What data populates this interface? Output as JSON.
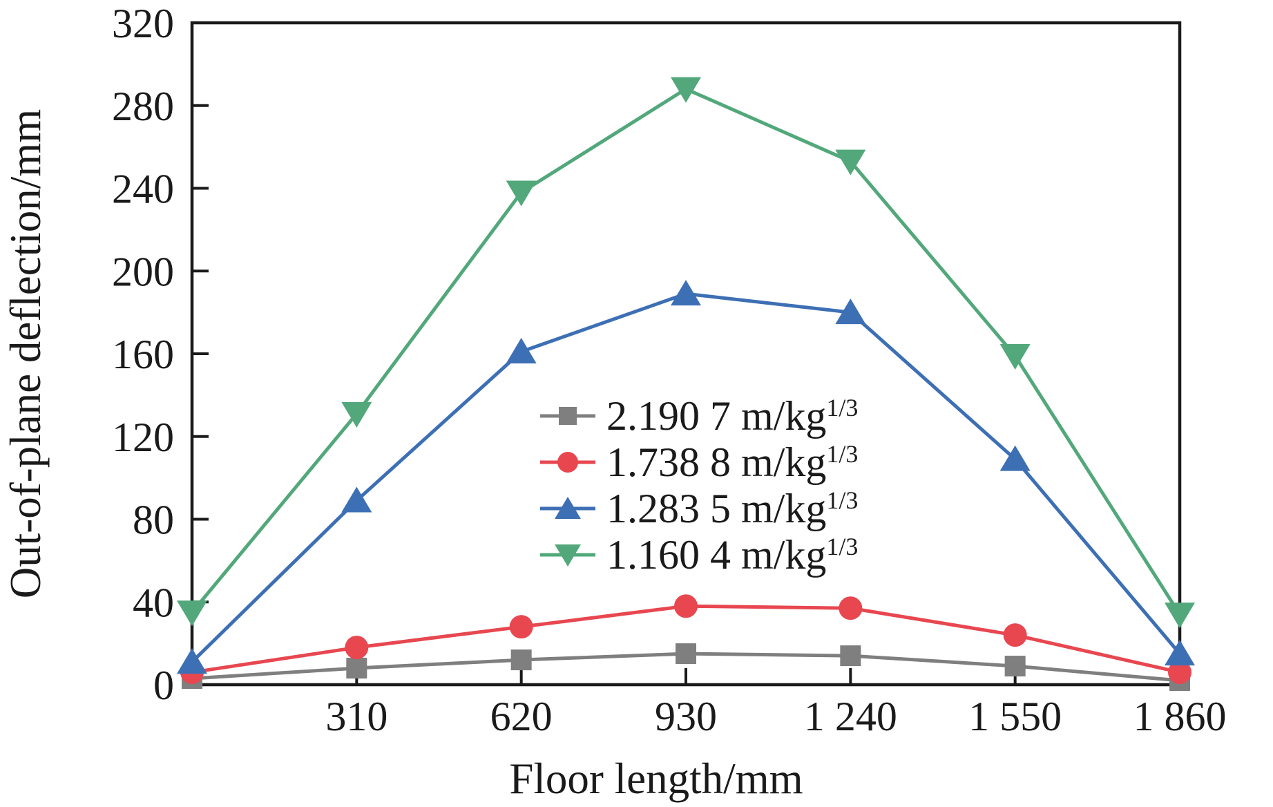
{
  "figure": {
    "background": "#ffffff",
    "axis_color": "#1a1a1a"
  },
  "chart_data": {
    "type": "line",
    "title": "",
    "xlabel": "Floor length/mm",
    "ylabel": "Out-of-plane deflection/mm",
    "xlim": [
      0,
      1860
    ],
    "ylim": [
      0,
      320
    ],
    "grid": false,
    "legend": {
      "position": "inside-center",
      "border": false
    },
    "x": [
      0,
      310,
      620,
      930,
      1240,
      1550,
      1860
    ],
    "x_ticks": [
      310,
      620,
      930,
      1240,
      1550,
      1860
    ],
    "x_tick_labels": [
      "310",
      "620",
      "930",
      "1 240",
      "1 550",
      "1 860"
    ],
    "y_ticks": [
      0,
      40,
      80,
      120,
      160,
      200,
      240,
      280,
      320
    ],
    "y_tick_labels": [
      "0",
      "40",
      "80",
      "120",
      "160",
      "200",
      "240",
      "280",
      "320"
    ],
    "series": [
      {
        "name": "2.190 7 m/kg",
        "sup": "1/3",
        "marker": "square",
        "color": "#7f7f7f",
        "values": [
          3,
          8,
          12,
          15,
          14,
          9,
          2
        ]
      },
      {
        "name": "1.738 8 m/kg",
        "sup": "1/3",
        "marker": "circle",
        "color": "#e84750",
        "values": [
          6,
          18,
          28,
          38,
          37,
          24,
          6
        ]
      },
      {
        "name": "1.283 5 m/kg",
        "sup": "1/3",
        "marker": "triangle-up",
        "color": "#3d6fb5",
        "values": [
          11,
          89,
          161,
          189,
          180,
          109,
          15
        ]
      },
      {
        "name": "1.160 4 m/kg",
        "sup": "1/3",
        "marker": "triangle-down",
        "color": "#52a87a",
        "values": [
          35,
          131,
          238,
          288,
          253,
          159,
          34
        ]
      }
    ]
  }
}
